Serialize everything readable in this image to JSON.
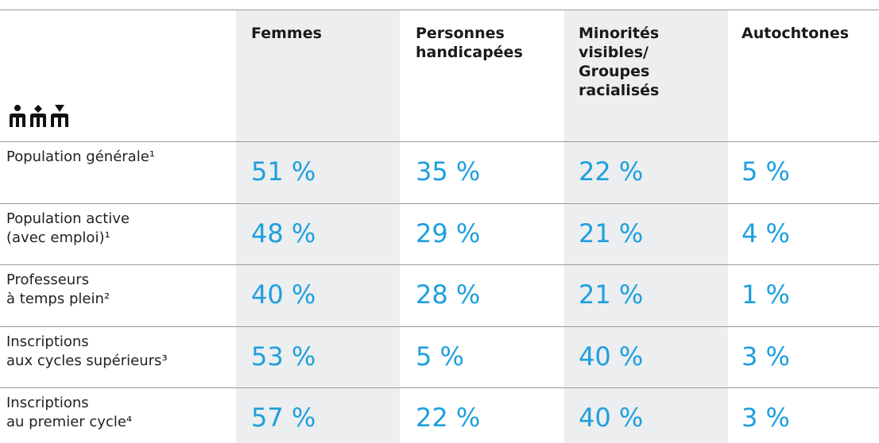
{
  "table": {
    "columns": [
      [
        "Femmes"
      ],
      [
        "Personnes",
        "handicapées"
      ],
      [
        "Minorités",
        "visibles/",
        "Groupes",
        "racialisés"
      ],
      [
        "Autochtones"
      ]
    ],
    "rows": [
      {
        "label": [
          "Population générale¹"
        ],
        "cells": [
          "51 %",
          "35 %",
          "22 %",
          "5 %"
        ]
      },
      {
        "label": [
          "Population active",
          "(avec emploi)¹"
        ],
        "cells": [
          "48 %",
          "29 %",
          "21 %",
          "4 %"
        ]
      },
      {
        "label": [
          "Professeurs",
          "à temps plein²"
        ],
        "cells": [
          "40 %",
          "28 %",
          "21 %",
          "1 %"
        ]
      },
      {
        "label": [
          "Inscriptions",
          "aux cycles supérieurs³"
        ],
        "cells": [
          "53 %",
          "5 %",
          "40 %",
          "3 %"
        ]
      },
      {
        "label": [
          "Inscriptions",
          "au premier cycle⁴"
        ],
        "cells": [
          "57 %",
          "22 %",
          "40 %",
          "3 %"
        ]
      }
    ]
  }
}
